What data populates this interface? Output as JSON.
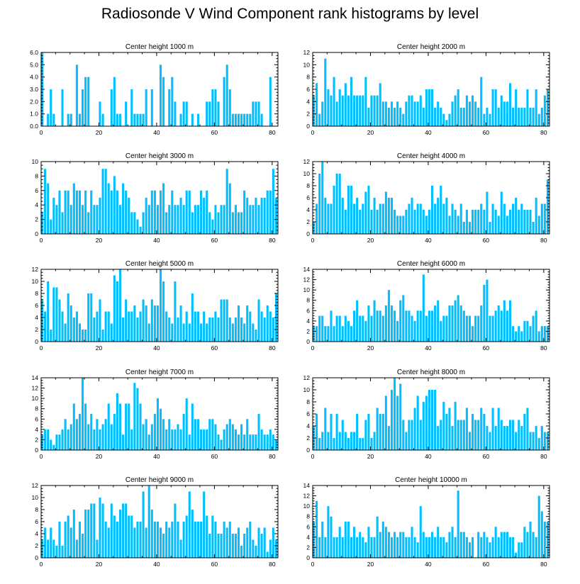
{
  "title": "Radiosonde V Wind Component rank histograms by level",
  "bar_color": "#00bfff",
  "chart_data": [
    {
      "type": "bar",
      "title": "Center height 1000 m",
      "xlabel": "",
      "ylabel": "",
      "xlim": [
        0,
        82
      ],
      "ylim": [
        0,
        6
      ],
      "xticks": [
        "0",
        "20",
        "40",
        "60",
        "80"
      ],
      "yticks": [
        "0.0",
        "1.0",
        "2.0",
        "3.0",
        "4.0",
        "5.0",
        "6.0"
      ],
      "values": [
        6,
        0,
        1,
        3,
        1,
        0,
        0,
        3,
        0,
        1,
        1,
        0,
        5,
        1,
        3,
        4,
        4,
        0,
        0,
        0,
        2,
        1,
        0,
        0,
        3,
        4,
        1,
        1,
        0,
        2,
        0,
        3,
        1,
        1,
        1,
        1,
        3,
        0,
        3,
        0,
        0,
        5,
        4,
        0,
        3,
        4,
        2,
        0,
        1,
        2,
        2,
        0,
        1,
        0,
        1,
        0,
        0,
        2,
        2,
        3,
        3,
        2,
        0,
        4,
        5,
        3,
        1,
        1,
        1,
        1,
        1,
        1,
        1,
        2,
        2,
        2,
        1,
        0,
        0,
        4,
        0,
        0
      ]
    },
    {
      "type": "bar",
      "title": "Center height 2000 m",
      "xlabel": "",
      "ylabel": "",
      "xlim": [
        0,
        82
      ],
      "ylim": [
        0,
        12
      ],
      "xticks": [
        "0",
        "20",
        "40",
        "60",
        "80"
      ],
      "yticks": [
        "0",
        "2",
        "4",
        "6",
        "8",
        "10",
        "12"
      ],
      "values": [
        5,
        7,
        2,
        4,
        11,
        6,
        5,
        8,
        4,
        6,
        5,
        7,
        5,
        8,
        5,
        5,
        5,
        5,
        8,
        3,
        5,
        5,
        5,
        7,
        4,
        4,
        3,
        4,
        3,
        4,
        3,
        2,
        4,
        5,
        5,
        4,
        4,
        5,
        3,
        6,
        6,
        6,
        3,
        4,
        3,
        2,
        1,
        2,
        4,
        5,
        6,
        3,
        3,
        5,
        4,
        5,
        4,
        3,
        8,
        2,
        3,
        2,
        6,
        6,
        3,
        5,
        4,
        4,
        7,
        3,
        6,
        3,
        3,
        3,
        6,
        3,
        3,
        6,
        2,
        3,
        5,
        6
      ]
    },
    {
      "type": "bar",
      "title": "Center height 3000 m",
      "xlabel": "",
      "ylabel": "",
      "xlim": [
        0,
        82
      ],
      "ylim": [
        0,
        10
      ],
      "xticks": [
        "0",
        "20",
        "40",
        "60",
        "80"
      ],
      "yticks": [
        "0",
        "2",
        "4",
        "6",
        "8",
        "10"
      ],
      "values": [
        3,
        9,
        7,
        2,
        5,
        4,
        6,
        3,
        6,
        6,
        4,
        7,
        6,
        6,
        4,
        6,
        3,
        6,
        4,
        4,
        5,
        9,
        9,
        7,
        6,
        8,
        6,
        4,
        7,
        6,
        5,
        3,
        3,
        2,
        1,
        3,
        5,
        4,
        6,
        6,
        4,
        6,
        7,
        3,
        4,
        6,
        4,
        4,
        5,
        4,
        6,
        6,
        3,
        4,
        4,
        6,
        5,
        6,
        3,
        2,
        4,
        3,
        4,
        4,
        9,
        7,
        3,
        4,
        3,
        3,
        6,
        5,
        4,
        4,
        5,
        4,
        5,
        5,
        6,
        6,
        9,
        5
      ]
    },
    {
      "type": "bar",
      "title": "Center height 4000 m",
      "xlabel": "",
      "ylabel": "",
      "xlim": [
        0,
        82
      ],
      "ylim": [
        0,
        12
      ],
      "xticks": [
        "0",
        "20",
        "40",
        "60",
        "80"
      ],
      "yticks": [
        "0",
        "2",
        "4",
        "6",
        "8",
        "10",
        "12"
      ],
      "values": [
        2,
        5,
        10,
        12,
        6,
        5,
        5,
        8,
        10,
        10,
        6,
        4,
        8,
        8,
        5,
        6,
        4,
        5,
        7,
        8,
        4,
        6,
        4,
        5,
        5,
        7,
        6,
        6,
        4,
        3,
        3,
        3,
        4,
        5,
        6,
        4,
        5,
        5,
        4,
        3,
        4,
        8,
        5,
        6,
        8,
        5,
        6,
        3,
        5,
        4,
        3,
        5,
        2,
        4,
        2,
        4,
        4,
        4,
        5,
        4,
        7,
        2,
        5,
        4,
        3,
        7,
        5,
        3,
        4,
        5,
        6,
        4,
        5,
        4,
        4,
        4,
        2,
        6,
        3,
        5,
        5,
        9
      ]
    },
    {
      "type": "bar",
      "title": "Center height 5000 m",
      "xlabel": "",
      "ylabel": "",
      "xlim": [
        0,
        82
      ],
      "ylim": [
        0,
        12
      ],
      "xticks": [
        "0",
        "20",
        "40",
        "60",
        "80"
      ],
      "yticks": [
        "0",
        "2",
        "4",
        "6",
        "8",
        "10",
        "12"
      ],
      "values": [
        7,
        5,
        10,
        2,
        9,
        9,
        7,
        5,
        3,
        8,
        6,
        4,
        5,
        3,
        2,
        2,
        8,
        8,
        4,
        5,
        7,
        2,
        5,
        5,
        3,
        11,
        10,
        12,
        4,
        7,
        5,
        5,
        6,
        4,
        5,
        7,
        6,
        3,
        7,
        6,
        6,
        12,
        10,
        5,
        4,
        3,
        10,
        4,
        6,
        3,
        5,
        3,
        8,
        5,
        5,
        3,
        5,
        3,
        4,
        4,
        5,
        4,
        7,
        7,
        7,
        4,
        3,
        4,
        6,
        4,
        3,
        6,
        5,
        3,
        2,
        7,
        5,
        4,
        6,
        5,
        4,
        8
      ]
    },
    {
      "type": "bar",
      "title": "Center height 6000 m",
      "xlabel": "",
      "ylabel": "",
      "xlim": [
        0,
        82
      ],
      "ylim": [
        0,
        14
      ],
      "xticks": [
        "0",
        "20",
        "40",
        "60",
        "80"
      ],
      "yticks": [
        "0",
        "2",
        "4",
        "6",
        "8",
        "10",
        "12",
        "14"
      ],
      "values": [
        3,
        3,
        5,
        5,
        3,
        3,
        6,
        3,
        5,
        5,
        3,
        5,
        4,
        3,
        6,
        8,
        5,
        5,
        4,
        7,
        5,
        8,
        6,
        6,
        5,
        7,
        10,
        7,
        6,
        4,
        8,
        9,
        6,
        6,
        5,
        4,
        6,
        6,
        13,
        5,
        6,
        6,
        7,
        8,
        4,
        5,
        5,
        7,
        7,
        8,
        9,
        7,
        6,
        5,
        5,
        3,
        5,
        5,
        7,
        11,
        12,
        5,
        5,
        6,
        7,
        6,
        8,
        6,
        8,
        3,
        2,
        3,
        2,
        4,
        4,
        3,
        5,
        6,
        2,
        3,
        3,
        3
      ]
    },
    {
      "type": "bar",
      "title": "Center height 7000 m",
      "xlabel": "",
      "ylabel": "",
      "xlim": [
        0,
        82
      ],
      "ylim": [
        0,
        14
      ],
      "xticks": [
        "0",
        "20",
        "40",
        "60",
        "80"
      ],
      "yticks": [
        "0",
        "2",
        "4",
        "6",
        "8",
        "10",
        "12",
        "14"
      ],
      "values": [
        3,
        4,
        4,
        2,
        1,
        3,
        3,
        4,
        6,
        4,
        5,
        9,
        6,
        7,
        14,
        9,
        5,
        7,
        4,
        6,
        4,
        5,
        6,
        9,
        5,
        7,
        11,
        9,
        3,
        9,
        9,
        4,
        13,
        12,
        9,
        5,
        6,
        3,
        5,
        7,
        10,
        8,
        6,
        4,
        6,
        4,
        4,
        5,
        4,
        7,
        10,
        3,
        9,
        6,
        6,
        4,
        4,
        4,
        6,
        6,
        5,
        3,
        2,
        4,
        5,
        6,
        5,
        4,
        3,
        5,
        3,
        6,
        3,
        3,
        3,
        7,
        4,
        3,
        3,
        4,
        3,
        2
      ]
    },
    {
      "type": "bar",
      "title": "Center height 8000 m",
      "xlabel": "",
      "ylabel": "",
      "xlim": [
        0,
        82
      ],
      "ylim": [
        0,
        12
      ],
      "xticks": [
        "0",
        "20",
        "40",
        "60",
        "80"
      ],
      "yticks": [
        "0",
        "2",
        "4",
        "6",
        "8",
        "10",
        "12"
      ],
      "values": [
        4,
        6,
        2,
        3,
        7,
        3,
        6,
        2,
        6,
        3,
        5,
        3,
        2,
        3,
        3,
        6,
        2,
        2,
        5,
        6,
        2,
        3,
        7,
        6,
        6,
        9,
        4,
        10,
        12,
        9,
        11,
        5,
        3,
        5,
        5,
        7,
        9,
        5,
        8,
        9,
        10,
        10,
        10,
        4,
        5,
        8,
        6,
        7,
        4,
        8,
        5,
        5,
        5,
        7,
        3,
        6,
        5,
        5,
        7,
        6,
        4,
        3,
        7,
        4,
        7,
        5,
        4,
        4,
        5,
        5,
        3,
        5,
        4,
        6,
        7,
        3,
        3,
        4,
        2,
        4,
        3,
        3
      ]
    },
    {
      "type": "bar",
      "title": "Center height 9000 m",
      "xlabel": "",
      "ylabel": "",
      "xlim": [
        0,
        82
      ],
      "ylim": [
        0,
        12
      ],
      "xticks": [
        "0",
        "20",
        "40",
        "60",
        "80"
      ],
      "yticks": [
        "0",
        "2",
        "4",
        "6",
        "8",
        "10",
        "12"
      ],
      "values": [
        3,
        5,
        3,
        5,
        3,
        2,
        6,
        2,
        6,
        7,
        5,
        8,
        3,
        6,
        4,
        8,
        8,
        9,
        9,
        3,
        10,
        9,
        6,
        5,
        9,
        7,
        6,
        8,
        9,
        9,
        7,
        7,
        5,
        6,
        6,
        11,
        5,
        12,
        8,
        6,
        6,
        5,
        4,
        6,
        5,
        6,
        9,
        6,
        3,
        6,
        7,
        11,
        8,
        6,
        6,
        6,
        11,
        7,
        4,
        7,
        6,
        4,
        4,
        6,
        5,
        6,
        4,
        4,
        5,
        2,
        4,
        5,
        6,
        3,
        2,
        5,
        4,
        5,
        1,
        3,
        5,
        3
      ]
    },
    {
      "type": "bar",
      "title": "Center height 10000 m",
      "xlabel": "",
      "ylabel": "",
      "xlim": [
        0,
        82
      ],
      "ylim": [
        0,
        14
      ],
      "xticks": [
        "0",
        "20",
        "40",
        "60",
        "80"
      ],
      "yticks": [
        "0",
        "2",
        "4",
        "6",
        "8",
        "10",
        "12",
        "14"
      ],
      "values": [
        7,
        11,
        4,
        7,
        4,
        10,
        8,
        4,
        4,
        6,
        4,
        7,
        7,
        4,
        6,
        4,
        5,
        4,
        3,
        6,
        4,
        4,
        8,
        5,
        7,
        6,
        5,
        4,
        5,
        4,
        5,
        5,
        4,
        4,
        6,
        4,
        3,
        10,
        5,
        4,
        4,
        5,
        4,
        6,
        4,
        4,
        3,
        5,
        6,
        4,
        13,
        5,
        5,
        4,
        3,
        4,
        0,
        5,
        4,
        5,
        4,
        3,
        4,
        6,
        4,
        5,
        5,
        5,
        4,
        4,
        1,
        3,
        3,
        6,
        5,
        7,
        5,
        4,
        12,
        9,
        7,
        7
      ]
    }
  ]
}
